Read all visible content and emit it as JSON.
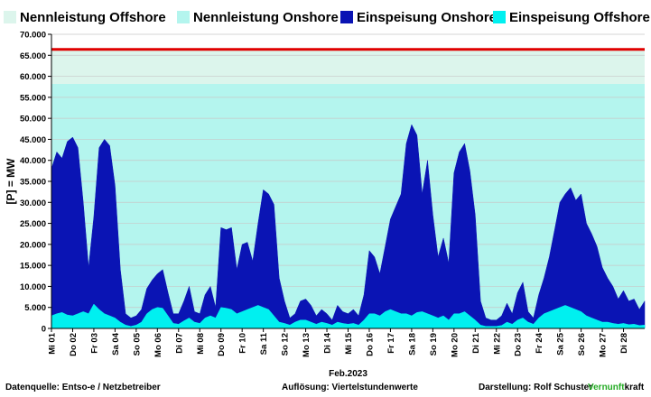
{
  "chart_data": {
    "type": "area",
    "ylabel": "[P] = MW",
    "xlabel": "Feb.2023",
    "ylim": [
      0,
      70000
    ],
    "yticks": [
      "0",
      "5.000",
      "10.000",
      "15.000",
      "20.000",
      "25.000",
      "30.000",
      "35.000",
      "40.000",
      "45.000",
      "50.000",
      "55.000",
      "60.000",
      "65.000",
      "70.000"
    ],
    "day_labels": [
      "Mi 01",
      "Do 02",
      "Fr 03",
      "Sa 04",
      "So 05",
      "Mo 06",
      "Di 07",
      "Mi 08",
      "Do 09",
      "Fr 10",
      "Sa 11",
      "So 12",
      "Mo 13",
      "Di 14",
      "Mi 15",
      "Do 16",
      "Fr 17",
      "Sa 18",
      "So 19",
      "Mo 20",
      "Di 21",
      "Mi 22",
      "Do 23",
      "Fr 24",
      "Sa 25",
      "So 26",
      "Mo 27",
      "Di 28"
    ],
    "grid": true,
    "legend_position": "top",
    "capacity": {
      "offshore_installed": 8200,
      "onshore_installed": 58200,
      "total_installed": 66400
    },
    "series": [
      {
        "name": "Einspeisung Onshore",
        "color": "#0a14b4",
        "x": [
          0,
          0.25,
          0.5,
          0.75,
          1,
          1.25,
          1.5,
          1.75,
          2,
          2.25,
          2.5,
          2.75,
          3,
          3.25,
          3.5,
          3.75,
          4,
          4.25,
          4.5,
          4.75,
          5,
          5.25,
          5.5,
          5.75,
          6,
          6.25,
          6.5,
          6.75,
          7,
          7.25,
          7.5,
          7.75,
          8,
          8.25,
          8.5,
          8.75,
          9,
          9.25,
          9.5,
          9.75,
          10,
          10.25,
          10.5,
          10.75,
          11,
          11.25,
          11.5,
          11.75,
          12,
          12.25,
          12.5,
          12.75,
          13,
          13.25,
          13.5,
          13.75,
          14,
          14.25,
          14.5,
          14.75,
          15,
          15.25,
          15.5,
          15.75,
          16,
          16.25,
          16.5,
          16.75,
          17,
          17.25,
          17.5,
          17.75,
          18,
          18.25,
          18.5,
          18.75,
          19,
          19.25,
          19.5,
          19.75,
          20,
          20.25,
          20.5,
          20.75,
          21,
          21.25,
          21.5,
          21.75,
          22,
          22.25,
          22.5,
          22.75,
          23,
          23.25,
          23.5,
          23.75,
          24,
          24.25,
          24.5,
          24.75,
          25,
          25.25,
          25.5,
          25.75,
          26,
          26.25,
          26.5,
          26.75,
          27,
          27.25,
          27.5,
          27.75,
          28
        ],
        "total": [
          38000,
          42000,
          40500,
          44500,
          45500,
          43000,
          30000,
          14500,
          26500,
          43000,
          45000,
          43500,
          34000,
          14000,
          3500,
          2500,
          3000,
          4500,
          9500,
          11500,
          13000,
          14000,
          8500,
          3500,
          3500,
          6500,
          10000,
          4000,
          3500,
          8000,
          10000,
          5000,
          24000,
          23500,
          24000,
          14000,
          20000,
          20500,
          16000,
          25000,
          33000,
          32000,
          29500,
          12000,
          6500,
          2500,
          3500,
          6500,
          7000,
          5500,
          3000,
          4500,
          3500,
          2000,
          5500,
          4000,
          3500,
          4500,
          3000,
          8000,
          18500,
          17000,
          13000,
          19500,
          26000,
          29000,
          32000,
          44000,
          48500,
          46000,
          32000,
          40000,
          27000,
          17000,
          21500,
          15500,
          37000,
          42000,
          44000,
          37500,
          27000,
          6500,
          2500,
          2000,
          2000,
          3000,
          6000,
          3500,
          8500,
          11000,
          4000,
          2500,
          8000,
          12000,
          17000,
          23500,
          30000,
          32000,
          33500,
          30500,
          32000,
          25000,
          22500,
          19500,
          14500,
          12000,
          10000,
          7000,
          9000,
          6500,
          7000,
          4500,
          6500
        ]
      },
      {
        "name": "Einspeisung Offshore",
        "color": "#00f0f0",
        "x": [
          0,
          0.25,
          0.5,
          0.75,
          1,
          1.25,
          1.5,
          1.75,
          2,
          2.25,
          2.5,
          2.75,
          3,
          3.25,
          3.5,
          3.75,
          4,
          4.25,
          4.5,
          4.75,
          5,
          5.25,
          5.5,
          5.75,
          6,
          6.25,
          6.5,
          6.75,
          7,
          7.25,
          7.5,
          7.75,
          8,
          8.25,
          8.5,
          8.75,
          9,
          9.25,
          9.5,
          9.75,
          10,
          10.25,
          10.5,
          10.75,
          11,
          11.25,
          11.5,
          11.75,
          12,
          12.25,
          12.5,
          12.75,
          13,
          13.25,
          13.5,
          13.75,
          14,
          14.25,
          14.5,
          14.75,
          15,
          15.25,
          15.5,
          15.75,
          16,
          16.25,
          16.5,
          16.75,
          17,
          17.25,
          17.5,
          17.75,
          18,
          18.25,
          18.5,
          18.75,
          19,
          19.25,
          19.5,
          19.75,
          20,
          20.25,
          20.5,
          20.75,
          21,
          21.25,
          21.5,
          21.75,
          22,
          22.25,
          22.5,
          22.75,
          23,
          23.25,
          23.5,
          23.75,
          24,
          24.25,
          24.5,
          24.75,
          25,
          25.25,
          25.5,
          25.75,
          26,
          26.25,
          26.5,
          26.75,
          27,
          27.25,
          27.5,
          27.75,
          28
        ],
        "values": [
          3000,
          3500,
          3800,
          3200,
          3000,
          3500,
          4000,
          3500,
          5800,
          4500,
          3500,
          3000,
          2500,
          1500,
          800,
          500,
          800,
          1500,
          3500,
          4500,
          5000,
          4800,
          3000,
          1200,
          1000,
          1800,
          2500,
          1500,
          1200,
          2500,
          3000,
          2500,
          5000,
          4800,
          4500,
          3500,
          4000,
          4500,
          5000,
          5500,
          5000,
          4500,
          3000,
          1500,
          1200,
          800,
          1500,
          2000,
          2000,
          1500,
          1000,
          1500,
          1200,
          800,
          1500,
          1200,
          1000,
          1200,
          800,
          2000,
          3500,
          3500,
          3000,
          4000,
          4500,
          4000,
          3500,
          3500,
          3000,
          3800,
          4000,
          3500,
          3000,
          2500,
          3000,
          2000,
          3500,
          3500,
          4000,
          3000,
          2000,
          800,
          500,
          500,
          500,
          700,
          1500,
          1000,
          2000,
          2500,
          1500,
          1000,
          2500,
          3500,
          4000,
          4500,
          5000,
          5500,
          5000,
          4500,
          4000,
          3000,
          2500,
          2000,
          1500,
          1500,
          1200,
          1000,
          1200,
          900,
          1000,
          700,
          800
        ]
      }
    ],
    "legend": [
      {
        "label": "Nennleistung Offshore",
        "color": "#dcf5ec"
      },
      {
        "label": "Nennleistung Onshore",
        "color": "#b4f5ee"
      },
      {
        "label": "Einspeisung Onshore",
        "color": "#0a14b4"
      },
      {
        "label": "Einspeisung Offshore",
        "color": "#00f0f0"
      }
    ]
  },
  "footer": {
    "source": "Datenquelle:  Entso-e  / Netzbetreiber",
    "resolution": "Auflösung: Viertelstundenwerte",
    "author": "Darstellung:  Rolf Schuster",
    "brand_green": "Vernunft",
    "brand_black": "kraft"
  },
  "colors": {
    "capacity_line": "#e00000",
    "grid": "#c8c8c8"
  }
}
